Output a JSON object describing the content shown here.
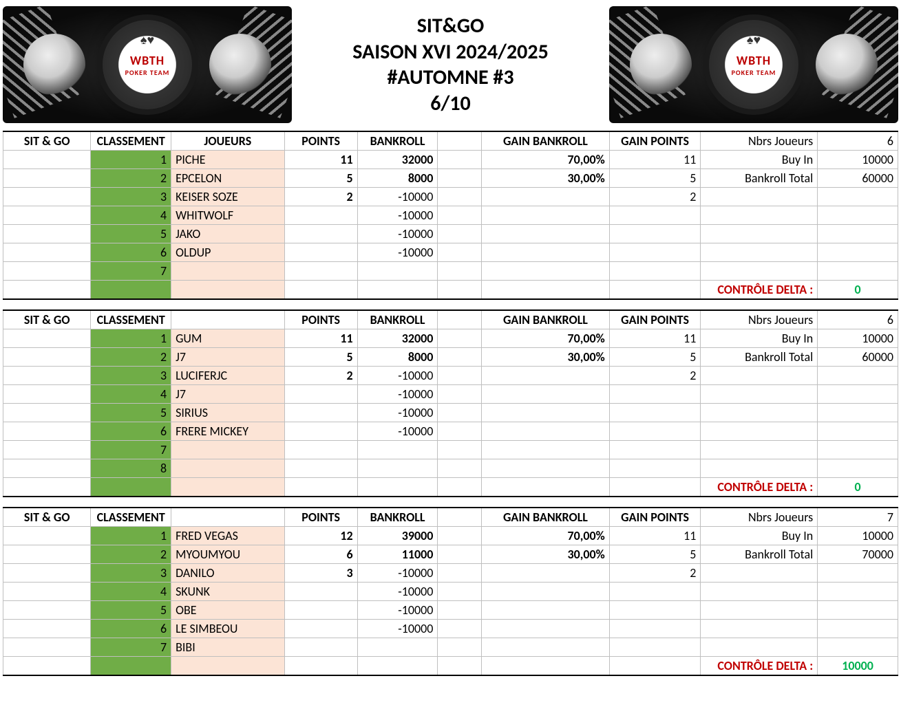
{
  "header": {
    "line1": "SIT&GO",
    "line2": "SAISON XVI 2024/2025",
    "line3": "#AUTOMNE #3",
    "line4": "6/10",
    "logo_top": "WBTH",
    "logo_bottom": "POKER TEAM"
  },
  "labels": {
    "sitgo": "SIT & GO",
    "classement": "CLASSEMENT",
    "joueurs": "JOUEURS",
    "points": "POINTS",
    "bankroll": "BANKROLL",
    "gain_bankroll": "GAIN BANKROLL",
    "gain_points": "GAIN POINTS",
    "nbrs_joueurs": "Nbrs Joueurs",
    "buy_in": "Buy In",
    "bankroll_total": "Bankroll Total",
    "controle_delta": "CONTRÔLE DELTA :"
  },
  "colors": {
    "yellow": "#ffff00",
    "green": "#70ad47",
    "peach": "#fce4d6",
    "red_text": "#c00000",
    "green_text": "#00b050",
    "grid": "#bfbfbf",
    "border": "#000000"
  },
  "tables": [
    {
      "info": {
        "nbrs_joueurs": "6",
        "buy_in": "10000",
        "bankroll_total": "60000"
      },
      "controle_delta": {
        "value": "0",
        "color": "green"
      },
      "rows": [
        {
          "rank": "1",
          "player": "PICHE",
          "points": "11",
          "bankroll": "32000",
          "bankroll_bold": true,
          "gain_bankroll": "70,00%",
          "gain_points": "11"
        },
        {
          "rank": "2",
          "player": "EPCELON",
          "points": "5",
          "bankroll": "8000",
          "bankroll_bold": true,
          "gain_bankroll": "30,00%",
          "gain_points": "5"
        },
        {
          "rank": "3",
          "player": "KEISER SOZE",
          "points": "2",
          "bankroll": "-10000",
          "bankroll_bold": false,
          "gain_bankroll": "",
          "gain_points": "2"
        },
        {
          "rank": "4",
          "player": "WHITWOLF",
          "points": "",
          "bankroll": "-10000",
          "bankroll_bold": false,
          "gain_bankroll": "",
          "gain_points": ""
        },
        {
          "rank": "5",
          "player": "JAKO",
          "points": "",
          "bankroll": "-10000",
          "bankroll_bold": false,
          "gain_bankroll": "",
          "gain_points": ""
        },
        {
          "rank": "6",
          "player": "OLDUP",
          "points": "",
          "bankroll": "-10000",
          "bankroll_bold": false,
          "gain_bankroll": "",
          "gain_points": ""
        },
        {
          "rank": "7",
          "player": "",
          "points": "",
          "bankroll": "",
          "bankroll_bold": false,
          "gain_bankroll": "",
          "gain_points": ""
        }
      ],
      "show_joueurs_header": true
    },
    {
      "info": {
        "nbrs_joueurs": "6",
        "buy_in": "10000",
        "bankroll_total": "60000"
      },
      "controle_delta": {
        "value": "0",
        "color": "green"
      },
      "rows": [
        {
          "rank": "1",
          "player": "GUM",
          "points": "11",
          "bankroll": "32000",
          "bankroll_bold": true,
          "gain_bankroll": "70,00%",
          "gain_points": "11"
        },
        {
          "rank": "2",
          "player": "J7",
          "points": "5",
          "bankroll": "8000",
          "bankroll_bold": true,
          "gain_bankroll": "30,00%",
          "gain_points": "5"
        },
        {
          "rank": "3",
          "player": "LUCIFERJC",
          "points": "2",
          "bankroll": "-10000",
          "bankroll_bold": false,
          "gain_bankroll": "",
          "gain_points": "2"
        },
        {
          "rank": "4",
          "player": "J7",
          "points": "",
          "bankroll": "-10000",
          "bankroll_bold": false,
          "gain_bankroll": "",
          "gain_points": ""
        },
        {
          "rank": "5",
          "player": "SIRIUS",
          "points": "",
          "bankroll": "-10000",
          "bankroll_bold": false,
          "gain_bankroll": "",
          "gain_points": ""
        },
        {
          "rank": "6",
          "player": "FRERE MICKEY",
          "points": "",
          "bankroll": "-10000",
          "bankroll_bold": false,
          "gain_bankroll": "",
          "gain_points": ""
        },
        {
          "rank": "7",
          "player": "",
          "points": "",
          "bankroll": "",
          "bankroll_bold": false,
          "gain_bankroll": "",
          "gain_points": ""
        },
        {
          "rank": "8",
          "player": "",
          "points": "",
          "bankroll": "",
          "bankroll_bold": false,
          "gain_bankroll": "",
          "gain_points": ""
        }
      ],
      "show_joueurs_header": false
    },
    {
      "info": {
        "nbrs_joueurs": "7",
        "buy_in": "10000",
        "bankroll_total": "70000"
      },
      "controle_delta": {
        "value": "10000",
        "color": "green"
      },
      "rows": [
        {
          "rank": "1",
          "player": "FRED VEGAS",
          "points": "12",
          "bankroll": "39000",
          "bankroll_bold": true,
          "gain_bankroll": "70,00%",
          "gain_points": "11"
        },
        {
          "rank": "2",
          "player": "MYOUMYOU",
          "points": "6",
          "bankroll": "11000",
          "bankroll_bold": true,
          "gain_bankroll": "30,00%",
          "gain_points": "5"
        },
        {
          "rank": "3",
          "player": "DANILO",
          "points": "3",
          "bankroll": "-10000",
          "bankroll_bold": false,
          "gain_bankroll": "",
          "gain_points": "2"
        },
        {
          "rank": "4",
          "player": "SKUNK",
          "points": "",
          "bankroll": "-10000",
          "bankroll_bold": false,
          "gain_bankroll": "",
          "gain_points": ""
        },
        {
          "rank": "5",
          "player": "OBE",
          "points": "",
          "bankroll": "-10000",
          "bankroll_bold": false,
          "gain_bankroll": "",
          "gain_points": ""
        },
        {
          "rank": "6",
          "player": "LE SIMBEOU",
          "points": "",
          "bankroll": "-10000",
          "bankroll_bold": false,
          "gain_bankroll": "",
          "gain_points": ""
        },
        {
          "rank": "7",
          "player": "BIBI",
          "points": "",
          "bankroll": "",
          "bankroll_bold": false,
          "gain_bankroll": "",
          "gain_points": ""
        }
      ],
      "show_joueurs_header": false
    }
  ]
}
